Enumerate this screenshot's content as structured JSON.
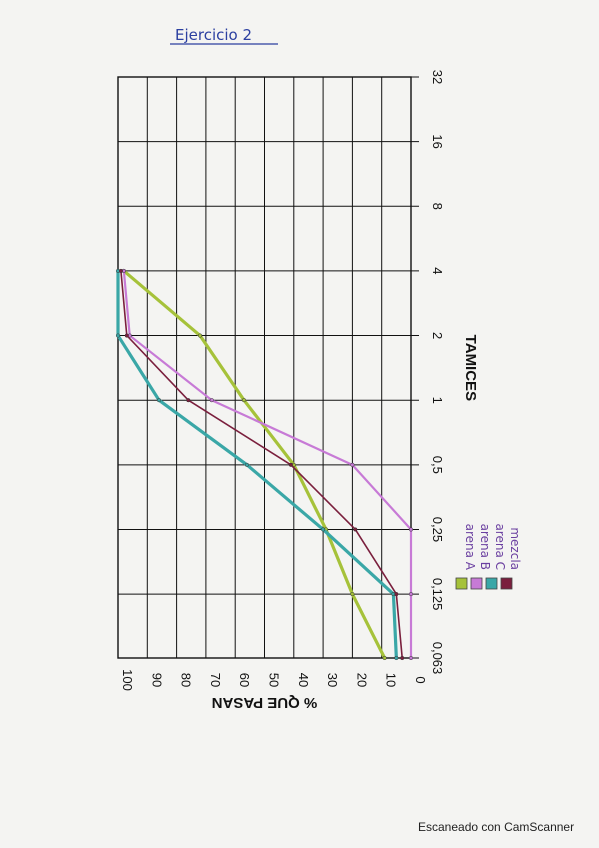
{
  "page": {
    "title": "Ejercicio 2",
    "footer": "Escaneado con CamScanner"
  },
  "chart_data": {
    "type": "line",
    "xlabel": "TAMICES",
    "ylabel": "% QUE PASAN",
    "x_scale": "log2",
    "x_ticks": [
      "0,063",
      "0,125",
      "0,25",
      "0,5",
      "1",
      "2",
      "4",
      "8",
      "16",
      "32"
    ],
    "y_ticks": [
      "0",
      "10",
      "20",
      "30",
      "40",
      "50",
      "60",
      "70",
      "80",
      "90",
      "100"
    ],
    "ylim": [
      0,
      100
    ],
    "grid": true,
    "legend_position": "right",
    "series": [
      {
        "name": "arena A",
        "color": "#a6c23a",
        "points": [
          [
            0.063,
            9
          ],
          [
            0.125,
            20
          ],
          [
            0.25,
            29
          ],
          [
            0.5,
            40
          ],
          [
            1,
            57
          ],
          [
            2,
            72
          ],
          [
            4,
            98
          ]
        ]
      },
      {
        "name": "arena B",
        "color": "#c77ad6",
        "points": [
          [
            0.063,
            0
          ],
          [
            0.125,
            0
          ],
          [
            0.25,
            0
          ],
          [
            0.5,
            20
          ],
          [
            1,
            68
          ],
          [
            2,
            96
          ],
          [
            4,
            98
          ]
        ]
      },
      {
        "name": "arena C",
        "color": "#3aa7a7",
        "points": [
          [
            0.063,
            5
          ],
          [
            0.125,
            6
          ],
          [
            0.25,
            30
          ],
          [
            0.5,
            56
          ],
          [
            1,
            86
          ],
          [
            2,
            100
          ],
          [
            4,
            100
          ]
        ]
      },
      {
        "name": "mezcla",
        "color": "#7a1f3d",
        "points": [
          [
            0.063,
            3
          ],
          [
            0.125,
            5
          ],
          [
            0.25,
            19
          ],
          [
            0.5,
            41
          ],
          [
            1,
            76
          ],
          [
            2,
            97
          ],
          [
            4,
            99
          ]
        ]
      }
    ]
  }
}
